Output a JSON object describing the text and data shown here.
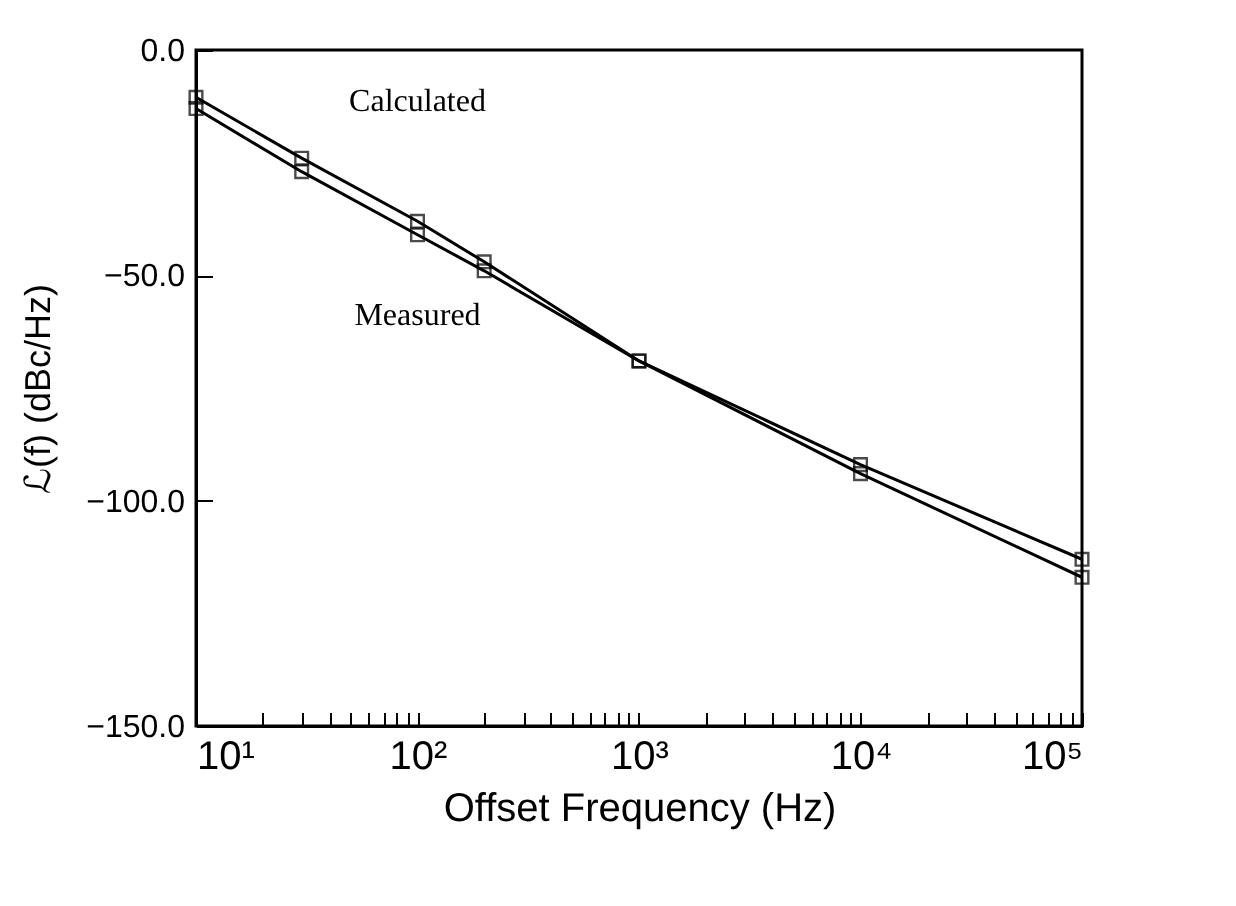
{
  "chart_data": {
    "type": "line",
    "xlabel": "Offset Frequency (Hz)",
    "ylabel": "ℒ(f)   (dBc/Hz)",
    "log": "x",
    "grid": false,
    "legend": false,
    "marker": "square",
    "line_style": "solid",
    "x": [
      10,
      30,
      100,
      200,
      1000,
      10000,
      100000
    ],
    "series": [
      {
        "name": "Calculated",
        "color": "#000000",
        "values": [
          -10.5,
          -24,
          -38,
          -47,
          -69,
          -92,
          -113
        ]
      },
      {
        "name": "Measured",
        "color": "#000000",
        "values": [
          -13,
          -27,
          -41,
          -49,
          -69,
          -94,
          -117
        ]
      }
    ],
    "xlim": [
      10,
      100000
    ],
    "xticks": [
      {
        "value": 10,
        "label": "10¹"
      },
      {
        "value": 20,
        "label": null
      },
      {
        "value": 30,
        "label": null
      },
      {
        "value": 40,
        "label": null
      },
      {
        "value": 50,
        "label": null
      },
      {
        "value": 60,
        "label": null
      },
      {
        "value": 70,
        "label": null
      },
      {
        "value": 80,
        "label": null
      },
      {
        "value": 90,
        "label": null
      },
      {
        "value": 100,
        "label": "10²"
      },
      {
        "value": 200,
        "label": null
      },
      {
        "value": 300,
        "label": null
      },
      {
        "value": 400,
        "label": null
      },
      {
        "value": 500,
        "label": null
      },
      {
        "value": 600,
        "label": null
      },
      {
        "value": 700,
        "label": null
      },
      {
        "value": 800,
        "label": null
      },
      {
        "value": 900,
        "label": null
      },
      {
        "value": 1000,
        "label": "10³"
      },
      {
        "value": 2000,
        "label": null
      },
      {
        "value": 3000,
        "label": null
      },
      {
        "value": 4000,
        "label": null
      },
      {
        "value": 5000,
        "label": null
      },
      {
        "value": 6000,
        "label": null
      },
      {
        "value": 7000,
        "label": null
      },
      {
        "value": 8000,
        "label": null
      },
      {
        "value": 9000,
        "label": null
      },
      {
        "value": 10000,
        "label": "10⁴"
      },
      {
        "value": 20000,
        "label": null
      },
      {
        "value": 30000,
        "label": null
      },
      {
        "value": 40000,
        "label": null
      },
      {
        "value": 50000,
        "label": null
      },
      {
        "value": 60000,
        "label": null
      },
      {
        "value": 70000,
        "label": null
      },
      {
        "value": 80000,
        "label": null
      },
      {
        "value": 90000,
        "label": null
      },
      {
        "value": 100000,
        "label": "10⁵"
      }
    ],
    "ylim": [
      -150,
      0
    ],
    "yticks": [
      {
        "value": -150,
        "label": "−150.0"
      },
      {
        "value": -100,
        "label": "−100.0"
      },
      {
        "value": -50,
        "label": "−50.0"
      },
      {
        "value": 0,
        "label": "0.0"
      }
    ]
  }
}
